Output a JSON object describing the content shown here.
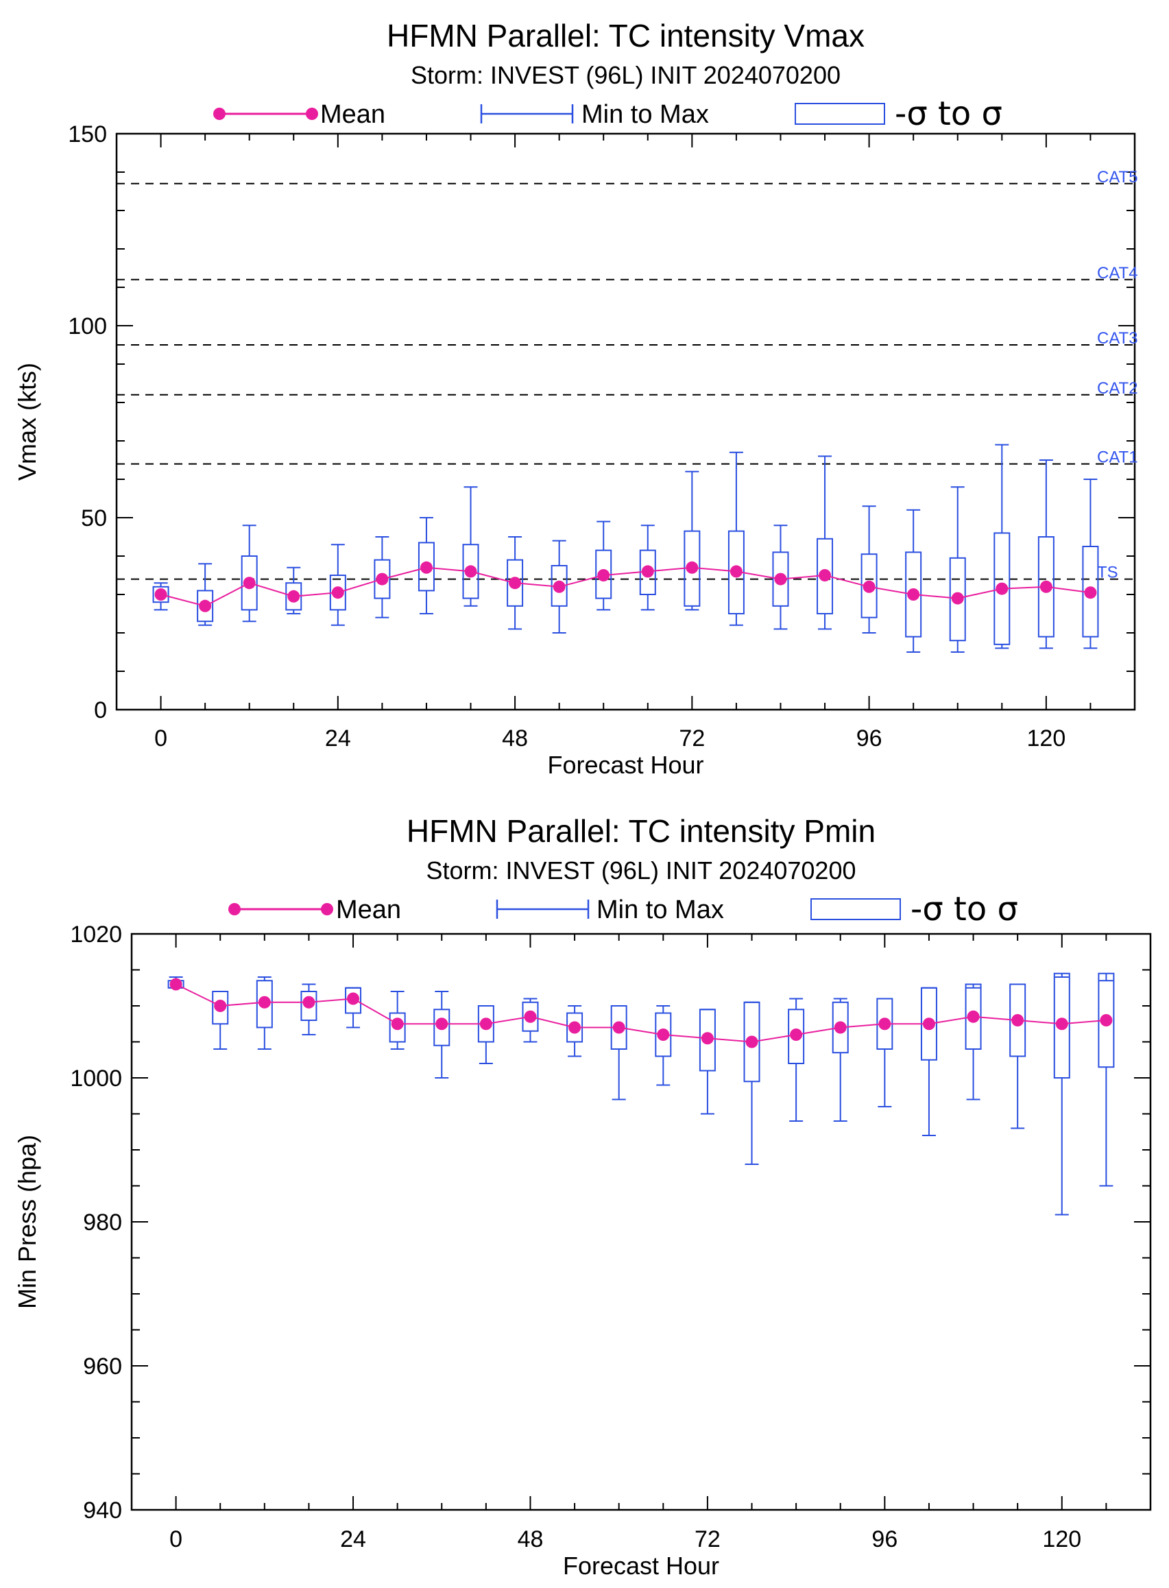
{
  "colors": {
    "mean": "#e91e9e",
    "box": "#2a4fe0",
    "axis": "#000000",
    "threshold": "#000000",
    "cat_label": "#3355ee"
  },
  "legend": {
    "mean": "Mean",
    "minmax": "Min to Max",
    "sigma": "-σ to σ"
  },
  "chart_data": [
    {
      "type": "box",
      "title": "HFMN Parallel: TC intensity Vmax",
      "subtitle": "Storm: INVEST (96L) INIT 2024070200",
      "xlabel": "Forecast Hour",
      "ylabel": "Vmax (kts)",
      "xlim": [
        -6,
        132
      ],
      "ylim": [
        0,
        150
      ],
      "xticks": [
        0,
        24,
        48,
        72,
        96,
        120
      ],
      "yticks": [
        0,
        50,
        100,
        150
      ],
      "grid": false,
      "legend_position": "top",
      "thresholds": [
        {
          "label": "TS",
          "value": 34
        },
        {
          "label": "CAT1",
          "value": 64
        },
        {
          "label": "CAT2",
          "value": 82
        },
        {
          "label": "CAT3",
          "value": 95
        },
        {
          "label": "CAT4",
          "value": 112
        },
        {
          "label": "CAT5",
          "value": 137
        }
      ],
      "x": [
        0,
        6,
        12,
        18,
        24,
        30,
        36,
        42,
        48,
        54,
        60,
        66,
        72,
        78,
        84,
        90,
        96,
        102,
        108,
        114,
        120,
        126
      ],
      "mean": [
        30,
        27,
        33,
        29.5,
        30.5,
        34,
        37,
        36,
        33,
        32,
        35,
        36,
        37,
        36,
        34,
        35,
        32,
        30,
        29,
        31.5,
        32,
        30.5
      ],
      "sigma_low": [
        28,
        23,
        26,
        26,
        26,
        29,
        31,
        29,
        27,
        27,
        29,
        30,
        27,
        25,
        27,
        25,
        24,
        19,
        18,
        17,
        19,
        19
      ],
      "sigma_high": [
        32,
        31,
        40,
        33,
        35,
        39,
        43.5,
        43,
        39,
        37.5,
        41.5,
        41.5,
        46.5,
        46.5,
        41,
        44.5,
        40.5,
        41,
        39.5,
        46,
        45,
        42.5
      ],
      "min": [
        26,
        22,
        23,
        25,
        22,
        24,
        25,
        27,
        21,
        20,
        26,
        26,
        26,
        22,
        21,
        21,
        20,
        15,
        15,
        16,
        16,
        16
      ],
      "max": [
        33,
        38,
        48,
        37,
        43,
        45,
        50,
        58,
        45,
        44,
        49,
        48,
        62,
        67,
        48,
        66,
        53,
        52,
        58,
        69,
        65,
        60
      ]
    },
    {
      "type": "box",
      "title": "HFMN Parallel: TC intensity Pmin",
      "subtitle": "Storm: INVEST (96L) INIT 2024070200",
      "xlabel": "Forecast Hour",
      "ylabel": "Min Press (hpa)",
      "xlim": [
        -6,
        132
      ],
      "ylim": [
        940,
        1020
      ],
      "xticks": [
        0,
        24,
        48,
        72,
        96,
        120
      ],
      "yticks": [
        940,
        960,
        980,
        1000,
        1020
      ],
      "grid": false,
      "legend_position": "top",
      "x": [
        0,
        6,
        12,
        18,
        24,
        30,
        36,
        42,
        48,
        54,
        60,
        66,
        72,
        78,
        84,
        90,
        96,
        102,
        108,
        114,
        120,
        126
      ],
      "mean": [
        1013,
        1010,
        1010.5,
        1010.5,
        1011,
        1007.5,
        1007.5,
        1007.5,
        1008.5,
        1007,
        1007,
        1006,
        1005.5,
        1005,
        1006,
        1007,
        1007.5,
        1007.5,
        1008.5,
        1008,
        1007.5,
        1008
      ],
      "sigma_low": [
        1012.5,
        1007.5,
        1007,
        1008,
        1009,
        1005,
        1004.5,
        1005,
        1006.5,
        1005,
        1004,
        1003,
        1001,
        999.5,
        1002,
        1003.5,
        1004,
        1002.5,
        1004,
        1003,
        1000,
        1001.5
      ],
      "sigma_high": [
        1013.5,
        1012,
        1013.5,
        1012,
        1012.5,
        1009,
        1009.5,
        1010,
        1010.5,
        1009,
        1010,
        1009,
        1009.5,
        1010.5,
        1009.5,
        1010.5,
        1011,
        1012.5,
        1013,
        1013,
        1014.5,
        1014.5
      ],
      "min": [
        1012.5,
        1004,
        1004,
        1006,
        1007,
        1004,
        1000,
        1002,
        1005,
        1003,
        997,
        999,
        995,
        988,
        994,
        994,
        996,
        992,
        997,
        993,
        981,
        985
      ],
      "max": [
        1014,
        1012,
        1014,
        1013,
        1012.5,
        1012,
        1012,
        1010,
        1011,
        1010,
        1010,
        1010,
        1009.5,
        1010.5,
        1011,
        1011,
        1011,
        1012.5,
        1012.5,
        1013,
        1014,
        1013.5
      ]
    }
  ]
}
